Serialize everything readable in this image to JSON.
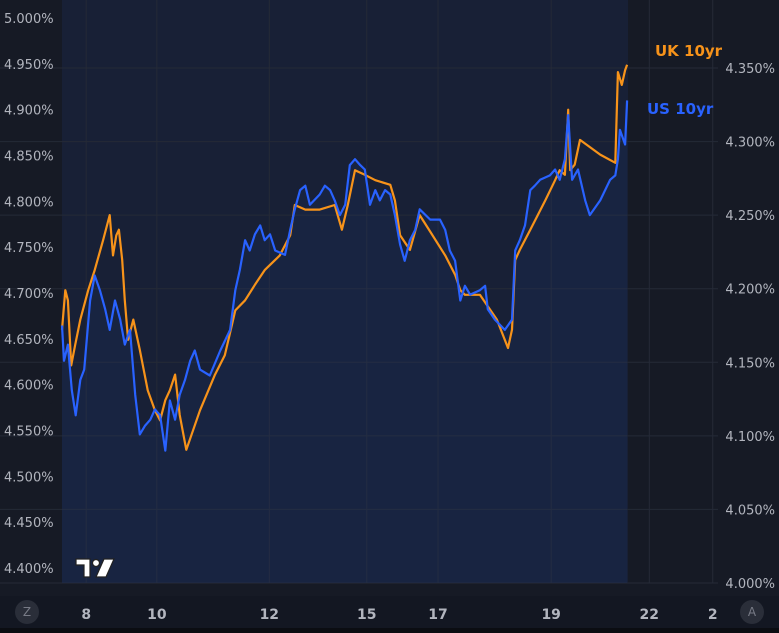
{
  "chart_data": {
    "type": "line",
    "title": "",
    "colors": {
      "uk": "#f7931a",
      "us": "#2962ff",
      "background": "#161a25",
      "plot_shade": "#182036",
      "grid": "#252a37"
    },
    "x_ticks": [
      {
        "label": "8",
        "x": 3.7
      },
      {
        "label": "10",
        "x": 14.5
      },
      {
        "label": "12",
        "x": 31.7
      },
      {
        "label": "15",
        "x": 46.6
      },
      {
        "label": "17",
        "x": 57.5
      },
      {
        "label": "19",
        "x": 74.8
      },
      {
        "label": "22",
        "x": 89.8
      },
      {
        "label": "2",
        "x": 99.5
      }
    ],
    "xlim": [
      0,
      100
    ],
    "left_axis": {
      "ylim": [
        4.38,
        5.0
      ],
      "ticks": [
        "4.400%",
        "4.450%",
        "4.500%",
        "4.550%",
        "4.600%",
        "4.650%",
        "4.700%",
        "4.750%",
        "4.800%",
        "4.850%",
        "4.900%",
        "4.950%",
        "5.000%"
      ],
      "tick_values": [
        4.4,
        4.45,
        4.5,
        4.55,
        4.6,
        4.65,
        4.7,
        4.75,
        4.8,
        4.85,
        4.9,
        4.95,
        5.0
      ]
    },
    "right_axis": {
      "ylim": [
        3.988,
        4.3622
      ],
      "ticks": [
        "4.000%",
        "4.050%",
        "4.100%",
        "4.150%",
        "4.200%",
        "4.250%",
        "4.300%",
        "4.350%"
      ],
      "tick_values": [
        4.0,
        4.05,
        4.1,
        4.15,
        4.2,
        4.25,
        4.3,
        4.35
      ]
    },
    "series": [
      {
        "name": "UK 10yr",
        "axis": "left",
        "color": "#f7931a",
        "points": [
          [
            0,
            4.66
          ],
          [
            0.5,
            4.703
          ],
          [
            0.9,
            4.692
          ],
          [
            1.4,
            4.621
          ],
          [
            2.0,
            4.643
          ],
          [
            2.8,
            4.671
          ],
          [
            4.0,
            4.703
          ],
          [
            5.0,
            4.725
          ],
          [
            6.3,
            4.758
          ],
          [
            7.3,
            4.785
          ],
          [
            7.8,
            4.741
          ],
          [
            8.3,
            4.763
          ],
          [
            8.7,
            4.769
          ],
          [
            9.2,
            4.736
          ],
          [
            9.6,
            4.692
          ],
          [
            10.1,
            4.649
          ],
          [
            10.9,
            4.671
          ],
          [
            11.9,
            4.638
          ],
          [
            13.1,
            4.594
          ],
          [
            14.2,
            4.572
          ],
          [
            15.0,
            4.561
          ],
          [
            15.8,
            4.583
          ],
          [
            16.5,
            4.594
          ],
          [
            17.3,
            4.611
          ],
          [
            18.0,
            4.567
          ],
          [
            19.0,
            4.529
          ],
          [
            21.1,
            4.572
          ],
          [
            23.4,
            4.611
          ],
          [
            24.9,
            4.632
          ],
          [
            26.5,
            4.681
          ],
          [
            28.0,
            4.692
          ],
          [
            29.5,
            4.709
          ],
          [
            31.0,
            4.725
          ],
          [
            33.3,
            4.741
          ],
          [
            34.9,
            4.763
          ],
          [
            35.6,
            4.796
          ],
          [
            37.2,
            4.791
          ],
          [
            39.4,
            4.791
          ],
          [
            41.7,
            4.796
          ],
          [
            42.8,
            4.769
          ],
          [
            43.7,
            4.796
          ],
          [
            44.8,
            4.834
          ],
          [
            46.3,
            4.829
          ],
          [
            47.9,
            4.823
          ],
          [
            50.2,
            4.818
          ],
          [
            50.9,
            4.801
          ],
          [
            51.7,
            4.763
          ],
          [
            53.2,
            4.747
          ],
          [
            54.7,
            4.785
          ],
          [
            56.3,
            4.767
          ],
          [
            58.6,
            4.741
          ],
          [
            60.1,
            4.72
          ],
          [
            60.9,
            4.703
          ],
          [
            61.6,
            4.698
          ],
          [
            63.9,
            4.698
          ],
          [
            66.5,
            4.671
          ],
          [
            68.2,
            4.64
          ],
          [
            68.8,
            4.66
          ],
          [
            69.3,
            4.736
          ],
          [
            70.0,
            4.747
          ],
          [
            71.6,
            4.769
          ],
          [
            73.9,
            4.801
          ],
          [
            75.4,
            4.823
          ],
          [
            76.1,
            4.834
          ],
          [
            76.9,
            4.829
          ],
          [
            77.4,
            4.9
          ],
          [
            77.7,
            4.834
          ],
          [
            78.4,
            4.84
          ],
          [
            79.2,
            4.867
          ],
          [
            82.3,
            4.851
          ],
          [
            84.6,
            4.842
          ],
          [
            85.0,
            4.941
          ],
          [
            85.6,
            4.927
          ],
          [
            86.1,
            4.943
          ],
          [
            86.4,
            4.949
          ]
        ]
      },
      {
        "name": "US 10yr",
        "axis": "right",
        "color": "#2962ff",
        "points": [
          [
            0,
            4.175
          ],
          [
            0.3,
            4.151
          ],
          [
            0.9,
            4.162
          ],
          [
            1.5,
            4.131
          ],
          [
            2.1,
            4.114
          ],
          [
            2.8,
            4.138
          ],
          [
            3.4,
            4.145
          ],
          [
            4.3,
            4.192
          ],
          [
            5.0,
            4.209
          ],
          [
            5.8,
            4.199
          ],
          [
            6.6,
            4.186
          ],
          [
            7.3,
            4.172
          ],
          [
            8.1,
            4.192
          ],
          [
            8.9,
            4.179
          ],
          [
            9.6,
            4.162
          ],
          [
            10.4,
            4.172
          ],
          [
            11.2,
            4.128
          ],
          [
            11.9,
            4.101
          ],
          [
            12.7,
            4.107
          ],
          [
            13.5,
            4.111
          ],
          [
            14.2,
            4.118
          ],
          [
            15.0,
            4.114
          ],
          [
            15.8,
            4.09
          ],
          [
            16.5,
            4.124
          ],
          [
            17.3,
            4.111
          ],
          [
            18.0,
            4.128
          ],
          [
            18.8,
            4.138
          ],
          [
            19.6,
            4.151
          ],
          [
            20.3,
            4.158
          ],
          [
            21.1,
            4.145
          ],
          [
            22.6,
            4.141
          ],
          [
            24.2,
            4.158
          ],
          [
            25.7,
            4.172
          ],
          [
            26.5,
            4.199
          ],
          [
            27.2,
            4.213
          ],
          [
            28.0,
            4.233
          ],
          [
            28.7,
            4.226
          ],
          [
            29.5,
            4.237
          ],
          [
            30.3,
            4.243
          ],
          [
            31.0,
            4.233
          ],
          [
            31.8,
            4.237
          ],
          [
            32.6,
            4.226
          ],
          [
            34.1,
            4.223
          ],
          [
            34.9,
            4.24
          ],
          [
            35.6,
            4.254
          ],
          [
            36.4,
            4.267
          ],
          [
            37.2,
            4.27
          ],
          [
            37.9,
            4.257
          ],
          [
            39.4,
            4.264
          ],
          [
            40.2,
            4.27
          ],
          [
            41.0,
            4.267
          ],
          [
            41.7,
            4.26
          ],
          [
            42.5,
            4.25
          ],
          [
            43.3,
            4.257
          ],
          [
            44.0,
            4.284
          ],
          [
            44.8,
            4.288
          ],
          [
            45.6,
            4.284
          ],
          [
            46.3,
            4.281
          ],
          [
            47.1,
            4.257
          ],
          [
            47.9,
            4.267
          ],
          [
            48.6,
            4.26
          ],
          [
            49.4,
            4.267
          ],
          [
            50.2,
            4.264
          ],
          [
            50.9,
            4.25
          ],
          [
            51.7,
            4.23
          ],
          [
            52.4,
            4.219
          ],
          [
            53.2,
            4.233
          ],
          [
            54.0,
            4.24
          ],
          [
            54.7,
            4.254
          ],
          [
            56.3,
            4.247
          ],
          [
            57.8,
            4.247
          ],
          [
            58.6,
            4.24
          ],
          [
            59.3,
            4.226
          ],
          [
            60.1,
            4.219
          ],
          [
            60.9,
            4.192
          ],
          [
            61.6,
            4.202
          ],
          [
            62.4,
            4.196
          ],
          [
            63.9,
            4.199
          ],
          [
            64.7,
            4.202
          ],
          [
            65.1,
            4.186
          ],
          [
            66.2,
            4.179
          ],
          [
            67.7,
            4.172
          ],
          [
            68.8,
            4.179
          ],
          [
            69.3,
            4.226
          ],
          [
            70.0,
            4.233
          ],
          [
            70.8,
            4.243
          ],
          [
            71.6,
            4.267
          ],
          [
            72.3,
            4.27
          ],
          [
            73.1,
            4.274
          ],
          [
            74.6,
            4.277
          ],
          [
            75.4,
            4.281
          ],
          [
            76.1,
            4.274
          ],
          [
            76.9,
            4.288
          ],
          [
            77.4,
            4.318
          ],
          [
            78.0,
            4.274
          ],
          [
            78.9,
            4.281
          ],
          [
            80.0,
            4.26
          ],
          [
            80.7,
            4.25
          ],
          [
            82.3,
            4.26
          ],
          [
            83.8,
            4.274
          ],
          [
            84.6,
            4.277
          ],
          [
            85.0,
            4.288
          ],
          [
            85.3,
            4.308
          ],
          [
            86.1,
            4.298
          ],
          [
            86.4,
            4.328
          ]
        ]
      }
    ],
    "legend": [
      {
        "label": "UK 10yr"
      },
      {
        "label": "US 10yr"
      }
    ],
    "legend_placement": "right, at line ends",
    "grid": true
  },
  "controls": {
    "left_scale_button": "Z",
    "right_scale_button": "A"
  }
}
